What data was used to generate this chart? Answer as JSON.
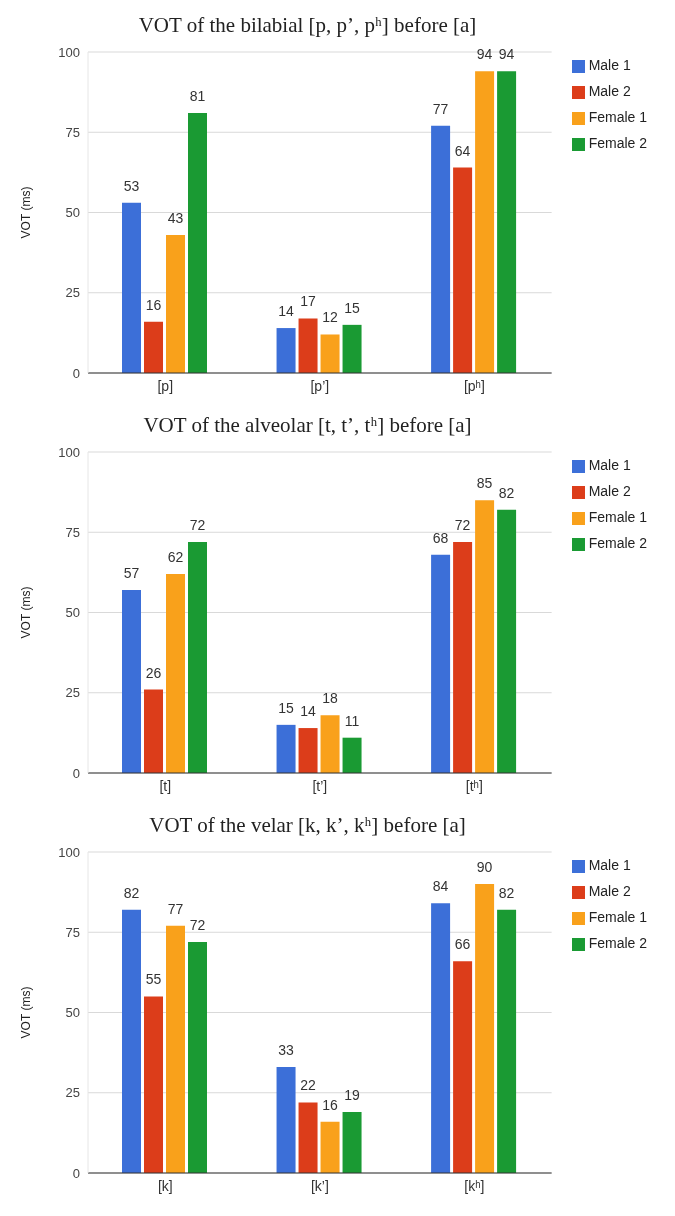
{
  "chart_data": [
    {
      "type": "bar",
      "title": "VOT of the bilabial [p, p’, pʰ] before [a]",
      "ylabel": "VOT (ms)",
      "categories": [
        "[p]",
        "[p’]",
        "[pʰ]"
      ],
      "series": [
        {
          "name": "Male 1",
          "color": "#3c6fd8",
          "values": [
            53,
            14,
            77
          ]
        },
        {
          "name": "Male 2",
          "color": "#dc3d1a",
          "values": [
            16,
            17,
            64
          ]
        },
        {
          "name": "Female 1",
          "color": "#f9a11b",
          "values": [
            43,
            12,
            94
          ]
        },
        {
          "name": "Female 2",
          "color": "#1a9a33",
          "values": [
            81,
            15,
            94
          ]
        }
      ],
      "ylim": [
        0,
        100
      ],
      "yticks": [
        0,
        25,
        50,
        75,
        100
      ],
      "grid": "y",
      "legend": "top right",
      "data_labels": true
    },
    {
      "type": "bar",
      "title": "VOT of the alveolar [t, t’, tʰ] before [a]",
      "ylabel": "VOT (ms)",
      "categories": [
        "[t]",
        "[t’]",
        "[tʰ]"
      ],
      "series": [
        {
          "name": "Male 1",
          "color": "#3c6fd8",
          "values": [
            57,
            15,
            68
          ]
        },
        {
          "name": "Male 2",
          "color": "#dc3d1a",
          "values": [
            26,
            14,
            72
          ]
        },
        {
          "name": "Female 1",
          "color": "#f9a11b",
          "values": [
            62,
            18,
            85
          ]
        },
        {
          "name": "Female 2",
          "color": "#1a9a33",
          "values": [
            72,
            11,
            82
          ]
        }
      ],
      "ylim": [
        0,
        100
      ],
      "yticks": [
        0,
        25,
        50,
        75,
        100
      ],
      "grid": "y",
      "legend": "top right",
      "data_labels": true
    },
    {
      "type": "bar",
      "title": "VOT of the velar [k, k’, kʰ] before [a]",
      "ylabel": "VOT (ms)",
      "categories": [
        "[k]",
        "[k’]",
        "[kʰ]"
      ],
      "series": [
        {
          "name": "Male 1",
          "color": "#3c6fd8",
          "values": [
            82,
            33,
            84
          ]
        },
        {
          "name": "Male 2",
          "color": "#dc3d1a",
          "values": [
            55,
            22,
            66
          ]
        },
        {
          "name": "Female 1",
          "color": "#f9a11b",
          "values": [
            77,
            16,
            90
          ]
        },
        {
          "name": "Female 2",
          "color": "#1a9a33",
          "values": [
            72,
            19,
            82
          ]
        }
      ],
      "ylim": [
        0,
        100
      ],
      "yticks": [
        0,
        25,
        50,
        75,
        100
      ],
      "grid": "y",
      "legend": "top right",
      "data_labels": true
    }
  ]
}
